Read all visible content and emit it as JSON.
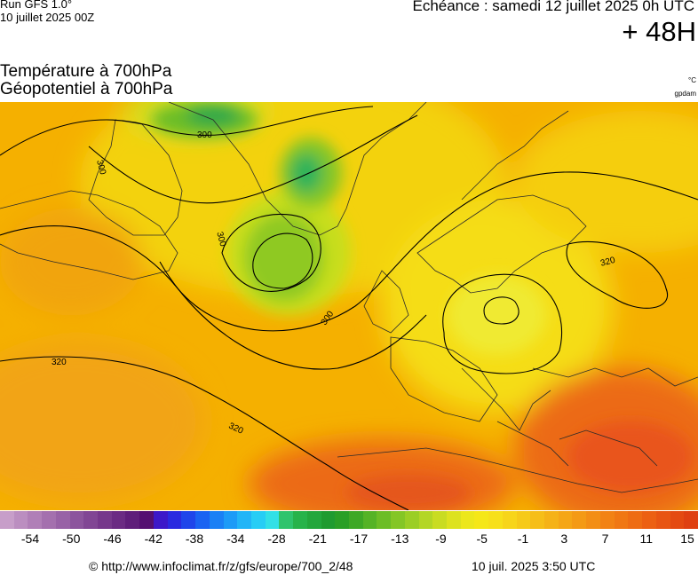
{
  "header": {
    "run_title": "Run GFS 1.0°",
    "run_date": "10 juillet 2025 00Z",
    "echeance": "Echéance : samedi 12 juillet 2025 0h UTC",
    "lead_time": "+ 48H"
  },
  "parameters": {
    "line1": "Température à 700hPa",
    "line2": "Géopotentiel à 700hPa",
    "unit_temperature": "°C",
    "unit_geopotential": "gpdam"
  },
  "map": {
    "contour_labels": [
      "300",
      "300",
      "300",
      "300",
      "320",
      "320",
      "320"
    ],
    "colors": {
      "coast": "#2a2a2a",
      "contour": "#000000",
      "cold_green": "#3fb54a",
      "mid_yellow": "#f5e200",
      "warm_orange": "#f5a200",
      "hot_red": "#ea5c1a"
    }
  },
  "legend": {
    "tick_labels": [
      "-54",
      "-50",
      "-46",
      "-42",
      "-38",
      "-34",
      "-28",
      "-21",
      "-17",
      "-13",
      "-9",
      "-5",
      "-1",
      "3",
      "7",
      "11",
      "15"
    ],
    "colors": [
      "#c79ec9",
      "#bb8ec0",
      "#b07fb7",
      "#a470ae",
      "#9862a6",
      "#8c549d",
      "#814694",
      "#76388b",
      "#6b2b83",
      "#5f1e7a",
      "#540f71",
      "#3c18c9",
      "#2a2ae0",
      "#1f45ea",
      "#1a63f2",
      "#1b80f5",
      "#1d9bf7",
      "#22b5f7",
      "#27cdf5",
      "#32e0e6",
      "#2fc46d",
      "#27b34a",
      "#23a73c",
      "#1f9b30",
      "#2a9f26",
      "#3ea826",
      "#55b326",
      "#6cbd26",
      "#84c626",
      "#9bce25",
      "#b3d625",
      "#c9dc22",
      "#dde21f",
      "#ece71c",
      "#f5e718",
      "#f7e01a",
      "#f7d51a",
      "#f6ca19",
      "#f6be18",
      "#f5b217",
      "#f5a616",
      "#f49a15",
      "#f38e15",
      "#f28214",
      "#f07713",
      "#ee6c13",
      "#ec6012",
      "#e85512",
      "#e44a11",
      "#df4011"
    ],
    "units": "°C"
  },
  "footer": {
    "url": "© http://www.infoclimat.fr/z/gfs/europe/700_2/48",
    "timestamp": "10 juil. 2025  3:50 UTC"
  }
}
